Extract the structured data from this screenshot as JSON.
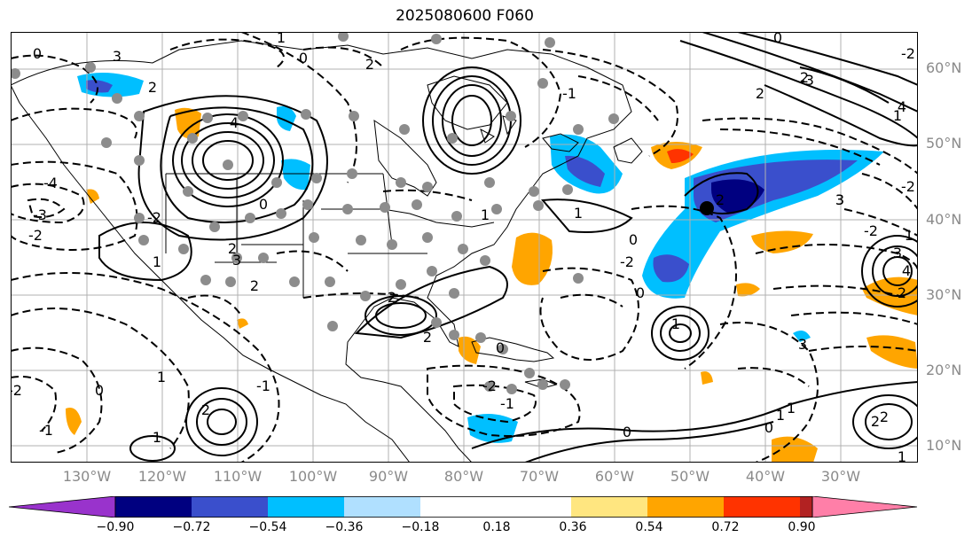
{
  "title": "2025080600 F060",
  "lat_labels": [
    "60°N",
    "50°N",
    "40°N",
    "30°N",
    "20°N",
    "10°N"
  ],
  "lon_labels": [
    "130°W",
    "120°W",
    "110°W",
    "100°W",
    "90°W",
    "80°W",
    "70°W",
    "60°W",
    "50°W",
    "40°W",
    "30°W"
  ],
  "contour_labels": [
    "1",
    "3",
    "2",
    "4",
    "2",
    "0",
    "-3",
    "-2",
    "-4",
    "2",
    "1",
    "3",
    "2",
    "0",
    "-1",
    "0",
    "-2",
    "1",
    "3",
    "2",
    "4",
    "2",
    "-2",
    "0",
    "-1",
    "-2",
    "0",
    "1",
    "0",
    "2",
    "3",
    "1",
    "-2",
    "0",
    "-1",
    "2",
    "-1",
    "1",
    "-2",
    "-1",
    "0",
    "2",
    "1",
    "1",
    "2",
    "2",
    "1",
    "0",
    "-2",
    "-3",
    "-2",
    "3",
    "4",
    "3",
    "2",
    "1",
    "2",
    "1",
    "0"
  ],
  "colorbar": {
    "ticks": [
      "−0.90",
      "−0.72",
      "−0.54",
      "−0.36",
      "−0.18",
      "0.18",
      "0.36",
      "0.54",
      "0.72",
      "0.90"
    ],
    "colors": {
      "under": "#9933cc",
      "bins": [
        "#000080",
        "#3a4fcc",
        "#00bfff",
        "#b0e0ff",
        "#ffffff",
        "#ffe680",
        "#ffa500",
        "#ff3300",
        "#b22222"
      ],
      "over": "#ff7fa8"
    }
  },
  "marker_color": "#000000",
  "dot_color": "#8c8c8c"
}
